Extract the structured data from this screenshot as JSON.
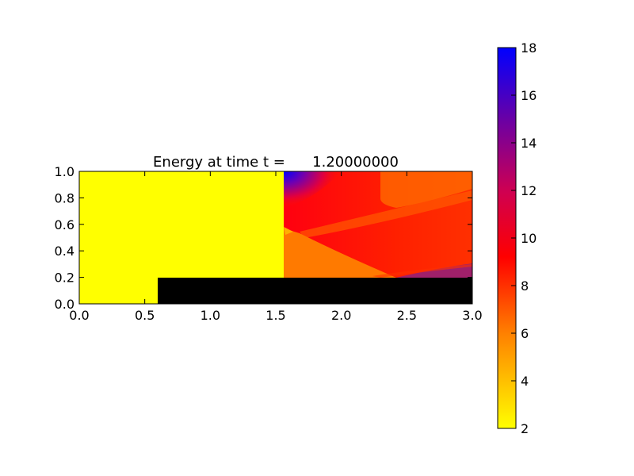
{
  "chart_data": {
    "type": "heatmap",
    "title": "Energy at time t =      1.20000000",
    "xlabel": "",
    "ylabel": "",
    "xlim": [
      0.0,
      3.0
    ],
    "ylim": [
      0.0,
      1.0
    ],
    "xticks": [
      "0.0",
      "0.5",
      "1.0",
      "1.5",
      "2.0",
      "2.5",
      "3.0"
    ],
    "yticks": [
      "0.0",
      "0.2",
      "0.4",
      "0.6",
      "0.8",
      "1.0"
    ],
    "grid": false,
    "colormap": "autumn_r + blue",
    "colorbar": {
      "range": [
        2,
        18
      ],
      "ticks": [
        "2",
        "4",
        "6",
        "8",
        "10",
        "12",
        "14",
        "16",
        "18"
      ],
      "colors": [
        "#ffff00",
        "#ff7f00",
        "#ff0000",
        "#c00060",
        "#8000a0",
        "#0000ff"
      ],
      "placement": "right"
    },
    "regions": [
      {
        "name": "unshocked region",
        "value": 2.0,
        "color": "#ffff00",
        "x": [
          0.0,
          1.56
        ],
        "y": [
          0.0,
          1.0
        ]
      },
      {
        "name": "step obstacle",
        "value": null,
        "color": "#000000",
        "x": [
          0.6,
          3.0
        ],
        "y": [
          0.0,
          0.2
        ]
      },
      {
        "name": "post-shock region",
        "value": 9.5,
        "color": "#ff2000",
        "x": [
          1.56,
          3.0
        ],
        "y": [
          0.2,
          1.0
        ]
      },
      {
        "name": "lower fan region",
        "value": 6.0,
        "color": "#ff7a00",
        "x": [
          1.56,
          2.45
        ],
        "y": [
          0.2,
          0.58
        ]
      },
      {
        "name": "corner high-energy",
        "value": 17.0,
        "color": "#1a00ff",
        "x": [
          1.56,
          1.65
        ],
        "y": [
          0.8,
          1.0
        ]
      },
      {
        "name": "lower-right band",
        "value": 14.0,
        "color": "#a0206a",
        "x": [
          2.45,
          3.0
        ],
        "y": [
          0.2,
          0.3
        ]
      }
    ]
  }
}
